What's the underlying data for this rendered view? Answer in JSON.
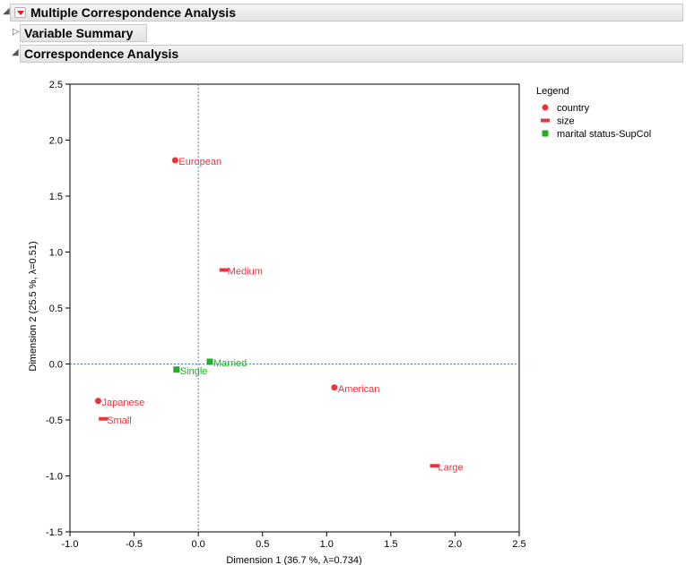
{
  "report": {
    "mca_title": "Multiple Correspondence Analysis",
    "variable_summary_title": "Variable Summary",
    "ca_title": "Correspondence Analysis"
  },
  "legend": {
    "title": "Legend",
    "items": [
      {
        "label": "country",
        "marker": "circle",
        "color": "#e8343f"
      },
      {
        "label": "size",
        "marker": "dash",
        "color": "#e8343f"
      },
      {
        "label": "marital status-SupCol",
        "marker": "square",
        "color": "#22b022"
      }
    ]
  },
  "chart_data": {
    "type": "scatter",
    "xlabel": "Dimension 1  (36.7 %, λ=0.734)",
    "ylabel": "Dimension 2  (25.5 %, λ=0.51)",
    "xlim": [
      -1.0,
      2.5
    ],
    "ylim": [
      -1.5,
      2.5
    ],
    "xticks": [
      -1.0,
      -0.5,
      0.0,
      0.5,
      1.0,
      1.5,
      2.0,
      2.5
    ],
    "xtick_labels": [
      "-1.0",
      "-0.5",
      "0.0",
      "0.5",
      "1.0",
      "1.5",
      "2.0",
      "2.5"
    ],
    "yticks": [
      -1.5,
      -1.0,
      -0.5,
      0.0,
      0.5,
      1.0,
      1.5,
      2.0,
      2.5
    ],
    "ytick_labels": [
      "-1.5",
      "-1.0",
      "-0.5",
      "0.0",
      "0.5",
      "1.0",
      "1.5",
      "2.0",
      "2.5"
    ],
    "reference_lines": {
      "x": 0,
      "y": 0,
      "style": "dashed",
      "color": "#4a7fd6"
    },
    "series": [
      {
        "name": "country",
        "marker": "circle",
        "color": "#e8343f",
        "points": [
          {
            "label": "European",
            "x": -0.18,
            "y": 1.82
          },
          {
            "label": "American",
            "x": 1.06,
            "y": -0.21
          },
          {
            "label": "Japanese",
            "x": -0.78,
            "y": -0.33
          }
        ]
      },
      {
        "name": "size",
        "marker": "dash",
        "color": "#e8343f",
        "points": [
          {
            "label": "Medium",
            "x": 0.2,
            "y": 0.84
          },
          {
            "label": "Small",
            "x": -0.74,
            "y": -0.49
          },
          {
            "label": "Large",
            "x": 1.84,
            "y": -0.91
          }
        ]
      },
      {
        "name": "marital status-SupCol",
        "marker": "square",
        "color": "#22b022",
        "points": [
          {
            "label": "Married",
            "x": 0.09,
            "y": 0.02
          },
          {
            "label": "Single",
            "x": -0.17,
            "y": -0.05
          }
        ]
      }
    ]
  }
}
